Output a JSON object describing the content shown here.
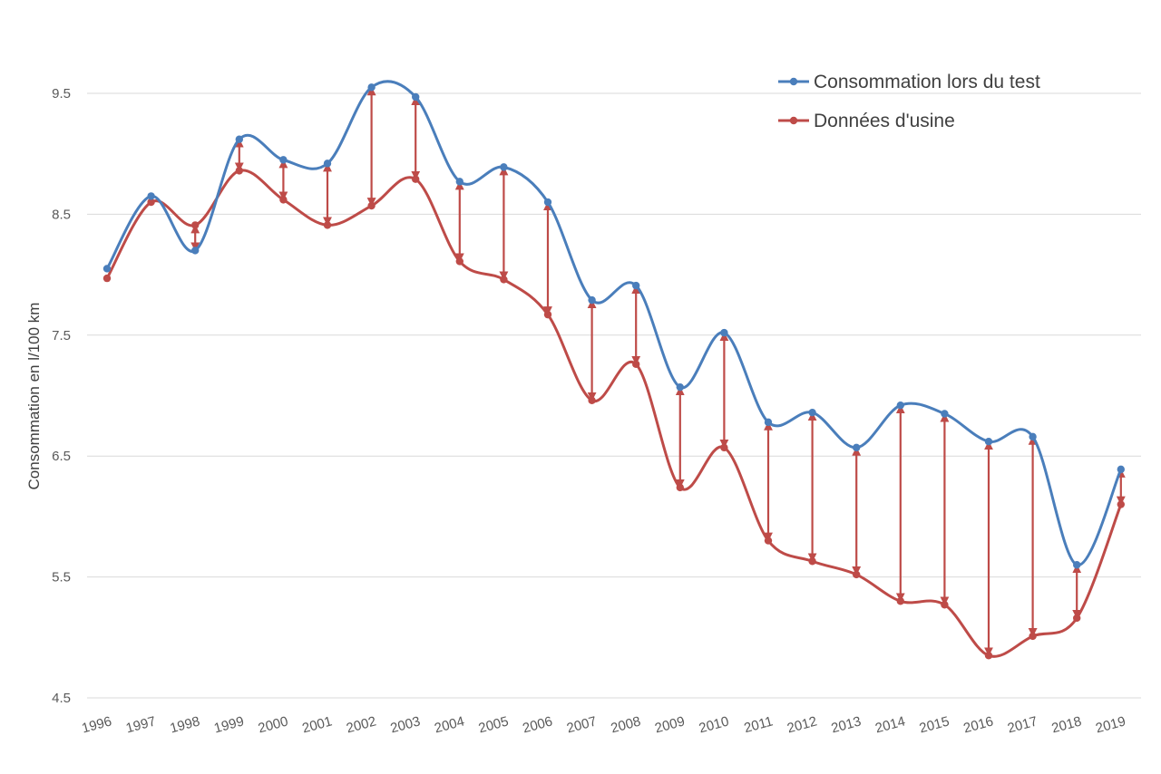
{
  "chart_data": {
    "type": "line",
    "xlabel": "",
    "ylabel": "Consommation en l/100 km",
    "ylim": [
      4.5,
      9.5
    ],
    "yticks": [
      "4.5",
      "5.5",
      "6.5",
      "7.5",
      "8.5",
      "9.5"
    ],
    "grid": true,
    "legend_position": "top-right",
    "categories": [
      "1996",
      "1997",
      "1998",
      "1999",
      "2000",
      "2001",
      "2002",
      "2003",
      "2004",
      "2005",
      "2006",
      "2007",
      "2008",
      "2009",
      "2010",
      "2011",
      "2012",
      "2013",
      "2014",
      "2015",
      "2016",
      "2017",
      "2018",
      "2019"
    ],
    "series": [
      {
        "name": "Consommation lors du test",
        "color": "#4a7ebb",
        "values": [
          8.05,
          8.65,
          8.2,
          9.12,
          8.95,
          8.92,
          9.55,
          9.47,
          8.77,
          8.89,
          8.6,
          7.79,
          7.91,
          7.07,
          7.52,
          6.78,
          6.86,
          6.57,
          6.92,
          6.85,
          6.62,
          6.66,
          5.6,
          6.39
        ]
      },
      {
        "name": "Données d'usine",
        "color": "#be4b48",
        "values": [
          7.97,
          8.6,
          8.41,
          8.86,
          8.62,
          8.41,
          8.57,
          8.79,
          8.11,
          7.96,
          7.67,
          6.96,
          7.26,
          6.24,
          6.57,
          5.8,
          5.63,
          5.52,
          5.3,
          5.27,
          4.85,
          5.01,
          5.16,
          6.1
        ]
      }
    ]
  }
}
